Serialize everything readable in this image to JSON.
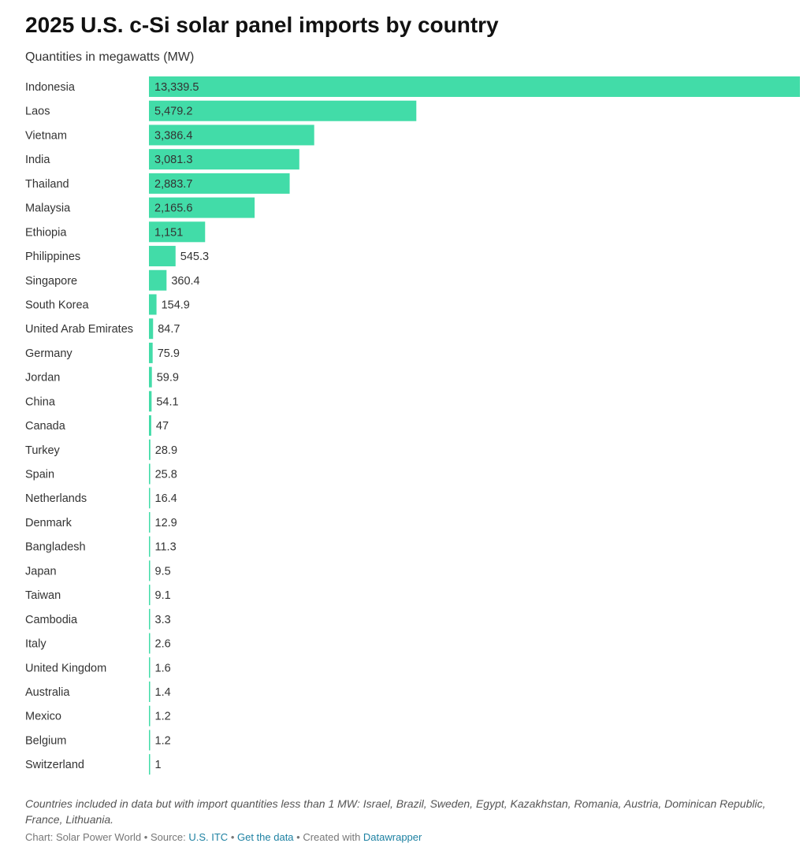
{
  "chart_data": {
    "type": "bar",
    "orientation": "horizontal",
    "title": "2025 U.S. c-Si solar panel imports by country",
    "subtitle": "Quantities in megawatts (MW)",
    "xlabel": "",
    "ylabel": "",
    "xlim": [
      0,
      13339.5
    ],
    "bar_color": "#42dca8",
    "categories": [
      "Indonesia",
      "Laos",
      "Vietnam",
      "India",
      "Thailand",
      "Malaysia",
      "Ethiopia",
      "Philippines",
      "Singapore",
      "South Korea",
      "United Arab Emirates",
      "Germany",
      "Jordan",
      "China",
      "Canada",
      "Turkey",
      "Spain",
      "Netherlands",
      "Denmark",
      "Bangladesh",
      "Japan",
      "Taiwan",
      "Cambodia",
      "Italy",
      "United Kingdom",
      "Australia",
      "Mexico",
      "Belgium",
      "Switzerland"
    ],
    "values": [
      13339.5,
      5479.2,
      3386.4,
      3081.3,
      2883.7,
      2165.6,
      1151,
      545.3,
      360.4,
      154.9,
      84.7,
      75.9,
      59.9,
      54.1,
      47,
      28.9,
      25.8,
      16.4,
      12.9,
      11.3,
      9.5,
      9.1,
      3.3,
      2.6,
      1.6,
      1.4,
      1.2,
      1.2,
      1
    ],
    "value_labels": [
      "13,339.5",
      "5,479.2",
      "3,386.4",
      "3,081.3",
      "2,883.7",
      "2,165.6",
      "1,151",
      "545.3",
      "360.4",
      "154.9",
      "84.7",
      "75.9",
      "59.9",
      "54.1",
      "47",
      "28.9",
      "25.8",
      "16.4",
      "12.9",
      "11.3",
      "9.5",
      "9.1",
      "3.3",
      "2.6",
      "1.6",
      "1.4",
      "1.2",
      "1.2",
      "1"
    ]
  },
  "notes": "Countries included in data but with import quantities less than 1 MW: Israel, Brazil, Sweden, Egypt, Kazakhstan, Romania, Austria, Dominican Republic, France, Lithuania.",
  "footer": {
    "chart_by": "Chart: Solar Power World",
    "sep1": " • ",
    "source_label": "Source: ",
    "source_link": "U.S. ITC",
    "sep2": " • ",
    "get_data": "Get the data",
    "sep3": " • ",
    "created_with": "Created with ",
    "tool_link": "Datawrapper"
  }
}
